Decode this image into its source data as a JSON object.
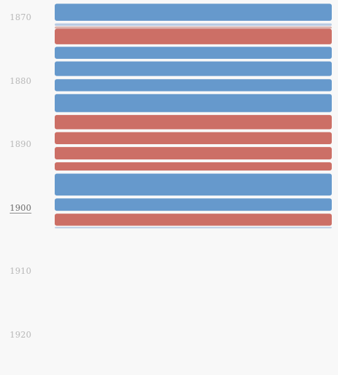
{
  "chart_data": {
    "type": "bar",
    "orientation": "horizontal-bands",
    "title": "",
    "xlabel": "",
    "ylabel": "",
    "y_axis_ticks": [
      "1870",
      "1880",
      "1890",
      "1900",
      "1910",
      "1920"
    ],
    "active_tick": "1900",
    "ylim": [
      1867.8,
      1926.8
    ],
    "colors": {
      "blue": "#6699cc",
      "red": "#cc6f66",
      "blue_faded": "#b9cbe3",
      "red_faded": "#dcb3ad"
    },
    "series": [
      {
        "start": 1867.85,
        "end": 1870.55,
        "party": "blue"
      },
      {
        "start": 1870.95,
        "end": 1871.35,
        "party": "blue_faded"
      },
      {
        "start": 1871.45,
        "end": 1871.8,
        "party": "red_faded"
      },
      {
        "start": 1871.8,
        "end": 1874.25,
        "party": "red"
      },
      {
        "start": 1874.65,
        "end": 1876.55,
        "party": "blue"
      },
      {
        "start": 1876.95,
        "end": 1879.25,
        "party": "blue"
      },
      {
        "start": 1879.75,
        "end": 1881.65,
        "party": "blue"
      },
      {
        "start": 1882.1,
        "end": 1884.95,
        "party": "blue"
      },
      {
        "start": 1885.4,
        "end": 1887.65,
        "party": "red"
      },
      {
        "start": 1888.1,
        "end": 1890.0,
        "party": "red"
      },
      {
        "start": 1890.45,
        "end": 1892.4,
        "party": "red"
      },
      {
        "start": 1892.85,
        "end": 1894.15,
        "party": "red"
      },
      {
        "start": 1894.65,
        "end": 1898.1,
        "party": "blue"
      },
      {
        "start": 1898.55,
        "end": 1900.5,
        "party": "blue"
      },
      {
        "start": 1900.95,
        "end": 1902.85,
        "party": "red"
      },
      {
        "start": 1903.05,
        "end": 1903.2,
        "party": "blue_faded"
      }
    ]
  }
}
